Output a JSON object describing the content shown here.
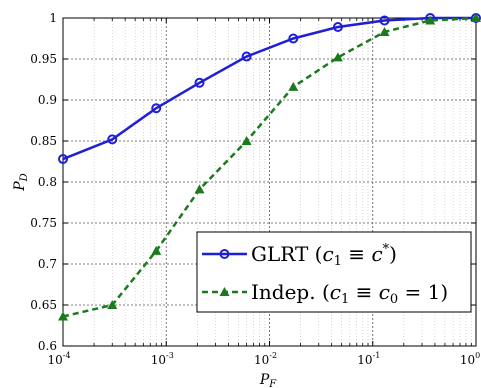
{
  "chart_data": {
    "type": "line",
    "title": "",
    "xlabel": "P_F",
    "ylabel": "P_D",
    "x_scale": "log",
    "xlim": [
      0.0001,
      1
    ],
    "ylim": [
      0.6,
      1
    ],
    "grid": true,
    "legend_position": "bottom-right",
    "x_tick_labels": [
      {
        "base": "10",
        "exp": "-4"
      },
      {
        "base": "10",
        "exp": "-3"
      },
      {
        "base": "10",
        "exp": "-2"
      },
      {
        "base": "10",
        "exp": "-1"
      },
      {
        "base": "10",
        "exp": "0"
      }
    ],
    "y_tick_labels": [
      "0.6",
      "0.65",
      "0.7",
      "0.75",
      "0.8",
      "0.85",
      "0.9",
      "0.95",
      "1"
    ],
    "series": [
      {
        "name": "GLRT (c1 ≡ c*)",
        "color": "#1f1fd6",
        "marker": "circle",
        "line_style": "solid",
        "x": [
          0.0001,
          0.0003,
          0.0008,
          0.0021,
          0.006,
          0.017,
          0.046,
          0.13,
          0.36,
          1.0
        ],
        "y": [
          0.828,
          0.852,
          0.89,
          0.921,
          0.953,
          0.975,
          0.989,
          0.997,
          1.0,
          1.0
        ]
      },
      {
        "name": "Indep. (c1 ≡ c0 = 1)",
        "color": "#1b7a1b",
        "marker": "triangle",
        "line_style": "dashed",
        "x": [
          0.0001,
          0.0003,
          0.0008,
          0.0021,
          0.006,
          0.017,
          0.046,
          0.13,
          0.36,
          1.0
        ],
        "y": [
          0.636,
          0.65,
          0.716,
          0.791,
          0.85,
          0.916,
          0.952,
          0.983,
          0.997,
          1.0
        ]
      }
    ]
  }
}
